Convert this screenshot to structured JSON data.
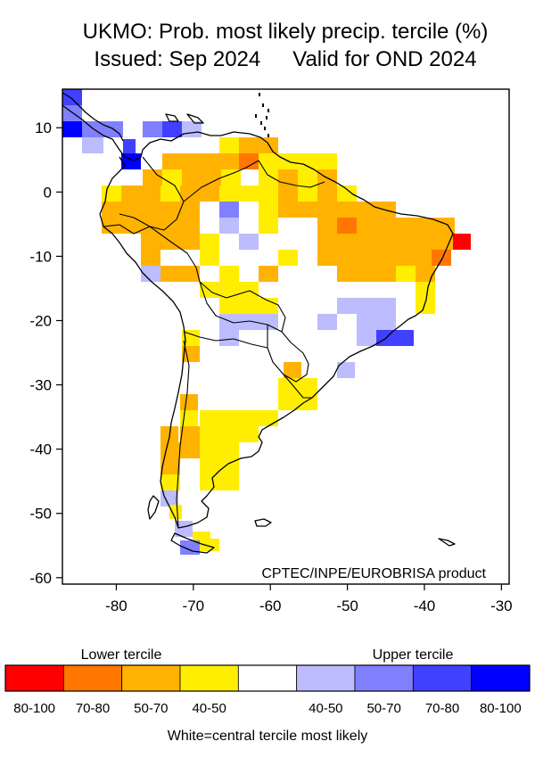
{
  "title": {
    "line1": "UKMO: Prob. most likely precip. tercile (%)",
    "issued": "Issued: Sep 2024",
    "valid": "Valid for OND 2024"
  },
  "credit": "CPTEC/INPE/EUROBRISA product",
  "axes": {
    "x_ticks": [
      "-80",
      "-70",
      "-60",
      "-50",
      "-40",
      "-30"
    ],
    "y_ticks": [
      "10",
      "0",
      "-10",
      "-20",
      "-30",
      "-40",
      "-50",
      "-60"
    ],
    "lon_range": [
      -87,
      -29
    ],
    "lat_range": [
      -61,
      16
    ]
  },
  "legend": {
    "lower_label": "Lower tercile",
    "upper_label": "Upper tercile",
    "footer": "White=central tercile most likely",
    "bins": [
      {
        "label": "80-100",
        "color": "#ff0000"
      },
      {
        "label": "70-80",
        "color": "#ff7700"
      },
      {
        "label": "50-70",
        "color": "#ffb300"
      },
      {
        "label": "40-50",
        "color": "#ffee00"
      },
      {
        "label": "",
        "color": "#ffffff"
      },
      {
        "label": "40-50",
        "color": "#bcbcff"
      },
      {
        "label": "50-70",
        "color": "#8080ff"
      },
      {
        "label": "70-80",
        "color": "#4040ff"
      },
      {
        "label": "80-100",
        "color": "#0000ff"
      }
    ]
  }
}
